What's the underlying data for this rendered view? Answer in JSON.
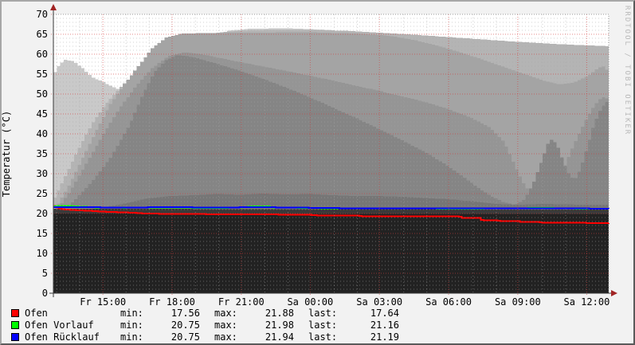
{
  "chart": {
    "ylabel": "Temperatur (°C)",
    "watermark": "RRDTOOL / TOBI OETIKER"
  },
  "chart_data": {
    "type": "area",
    "title": "",
    "xlabel": "",
    "ylabel": "Temperatur (°C)",
    "ylim": [
      0,
      70
    ],
    "y_major_step": 5,
    "y_minor_step": 1,
    "x_span_hours": 24,
    "x_ticks": [
      {
        "hour": 2.14,
        "label": "Fr 15:00"
      },
      {
        "hour": 5.13,
        "label": "Fr 18:00"
      },
      {
        "hour": 8.12,
        "label": "Fr 21:00"
      },
      {
        "hour": 11.1,
        "label": "Sa 00:00"
      },
      {
        "hour": 14.09,
        "label": "Sa 03:00"
      },
      {
        "hour": 17.08,
        "label": "Sa 06:00"
      },
      {
        "hour": 20.07,
        "label": "Sa 09:00"
      },
      {
        "hour": 23.05,
        "label": "Sa 12:00"
      }
    ],
    "grid": {
      "major_color": "rgba(210,60,60,0.6)",
      "minor_color": "rgba(165,165,165,0.5)",
      "axis_color": "#3a3a3a",
      "arrow_color": "#a12424",
      "frame_color": "#999999"
    },
    "gray_areas": [
      {
        "name": "background-band-1",
        "color": "#c9c9c9",
        "points": [
          [
            0,
            55.5
          ],
          [
            0.2,
            57.5
          ],
          [
            0.45,
            58.6
          ],
          [
            0.8,
            58.2
          ],
          [
            1.2,
            56.5
          ],
          [
            1.6,
            54.2
          ],
          [
            2.1,
            53
          ],
          [
            2.6,
            51.5
          ],
          [
            3.2,
            50.5
          ],
          [
            5,
            55
          ],
          [
            6.5,
            62
          ],
          [
            7.5,
            65.9
          ],
          [
            8.5,
            66.4
          ],
          [
            10,
            66.5
          ],
          [
            11.5,
            66.2
          ],
          [
            12.5,
            65.8
          ],
          [
            13,
            64
          ],
          [
            14,
            60
          ],
          [
            24,
            58
          ]
        ]
      },
      {
        "name": "background-band-2",
        "color": "#b4b4b4",
        "points": [
          [
            0,
            24
          ],
          [
            0.5,
            30
          ],
          [
            1,
            36
          ],
          [
            1.6,
            42.5
          ],
          [
            2.2,
            47.5
          ],
          [
            2.8,
            51.5
          ],
          [
            3.4,
            55
          ],
          [
            4,
            58
          ],
          [
            4.6,
            60.8
          ],
          [
            5.2,
            62.8
          ],
          [
            6,
            64.4
          ],
          [
            7,
            65.4
          ],
          [
            8,
            65.9
          ],
          [
            9.5,
            66.1
          ],
          [
            11,
            66.1
          ],
          [
            12.5,
            65.9
          ],
          [
            14,
            65.4
          ],
          [
            15.5,
            64.9
          ],
          [
            17,
            64.3
          ],
          [
            18.5,
            63.7
          ],
          [
            20,
            63.1
          ],
          [
            21.5,
            62.6
          ],
          [
            23,
            62.2
          ],
          [
            24,
            62
          ]
        ]
      },
      {
        "name": "background-band-3",
        "color": "#a4a4a4",
        "points": [
          [
            0,
            21
          ],
          [
            0.6,
            27
          ],
          [
            1.2,
            34
          ],
          [
            1.8,
            41
          ],
          [
            2.4,
            47.5
          ],
          [
            3,
            52.5
          ],
          [
            3.6,
            57
          ],
          [
            4.2,
            61.5
          ],
          [
            4.8,
            64.2
          ],
          [
            5.5,
            65.2
          ],
          [
            8,
            65.4
          ],
          [
            11,
            65.5
          ],
          [
            13,
            65.2
          ],
          [
            14.5,
            64.6
          ],
          [
            15.5,
            63.6
          ],
          [
            16.5,
            62.2
          ],
          [
            17.5,
            60.5
          ],
          [
            18.5,
            58.6
          ],
          [
            19.5,
            56.6
          ],
          [
            20.5,
            54.6
          ],
          [
            21.2,
            53.2
          ],
          [
            21.8,
            52.4
          ],
          [
            22.4,
            52.8
          ],
          [
            23,
            54.4
          ],
          [
            23.5,
            56.6
          ],
          [
            23.8,
            57
          ],
          [
            24,
            53.5
          ]
        ]
      },
      {
        "name": "background-band-4",
        "color": "#959595",
        "points": [
          [
            0,
            20
          ],
          [
            0.7,
            26
          ],
          [
            1.4,
            33
          ],
          [
            2.1,
            40
          ],
          [
            2.8,
            46.5
          ],
          [
            3.5,
            52
          ],
          [
            4.2,
            56.5
          ],
          [
            4.9,
            59.5
          ],
          [
            5.6,
            60.5
          ],
          [
            6.5,
            59.8
          ],
          [
            8,
            58
          ],
          [
            10,
            55.8
          ],
          [
            12,
            53.4
          ],
          [
            14,
            50.8
          ],
          [
            16,
            48
          ],
          [
            17,
            46.2
          ],
          [
            18,
            44
          ],
          [
            18.8,
            41.6
          ],
          [
            19.4,
            38
          ],
          [
            19.8,
            33
          ],
          [
            20.2,
            28
          ],
          [
            20.6,
            24.6
          ],
          [
            21,
            23.4
          ],
          [
            21.4,
            25
          ],
          [
            21.9,
            30
          ],
          [
            22.4,
            37
          ],
          [
            22.9,
            43
          ],
          [
            23.3,
            47
          ],
          [
            23.6,
            49
          ],
          [
            23.8,
            49.5
          ],
          [
            24,
            47
          ]
        ]
      },
      {
        "name": "background-band-5",
        "color": "#858585",
        "points": [
          [
            0,
            19.5
          ],
          [
            0.8,
            23
          ],
          [
            1.6,
            28
          ],
          [
            2.4,
            34
          ],
          [
            3.2,
            42
          ],
          [
            3.8,
            50
          ],
          [
            4.3,
            55.5
          ],
          [
            4.8,
            58.5
          ],
          [
            5.3,
            59.8
          ],
          [
            6,
            59.2
          ],
          [
            7,
            57.6
          ],
          [
            8,
            55.8
          ],
          [
            9,
            53.8
          ],
          [
            10,
            51.6
          ],
          [
            11,
            49.2
          ],
          [
            12,
            46.6
          ],
          [
            13,
            44
          ],
          [
            14,
            41.2
          ],
          [
            15,
            38.4
          ],
          [
            16,
            35.4
          ],
          [
            16.8,
            32.6
          ],
          [
            17.6,
            29.4
          ],
          [
            18.3,
            26.4
          ],
          [
            18.9,
            24.2
          ],
          [
            19.4,
            22.8
          ],
          [
            19.9,
            22.2
          ],
          [
            20.3,
            23.6
          ],
          [
            20.7,
            28
          ],
          [
            21.05,
            33.5
          ],
          [
            21.3,
            37.5
          ],
          [
            21.5,
            38.8
          ],
          [
            21.75,
            36.5
          ],
          [
            22,
            32.5
          ],
          [
            22.25,
            29.5
          ],
          [
            22.45,
            28.4
          ],
          [
            22.7,
            31
          ],
          [
            23,
            36.5
          ],
          [
            23.3,
            42.5
          ],
          [
            23.6,
            46.5
          ],
          [
            23.85,
            48
          ],
          [
            24,
            45.5
          ]
        ]
      },
      {
        "name": "background-band-6",
        "color": "#767676",
        "points": [
          [
            0,
            20.5
          ],
          [
            2,
            21.5
          ],
          [
            3,
            22.5
          ],
          [
            4,
            23.8
          ],
          [
            5,
            24.4
          ],
          [
            6,
            24.6
          ],
          [
            7,
            24.9
          ],
          [
            8,
            24.7
          ],
          [
            9,
            25
          ],
          [
            10,
            24.8
          ],
          [
            11,
            24.9
          ],
          [
            12,
            24.6
          ],
          [
            13,
            24.4
          ],
          [
            14,
            24.4
          ],
          [
            15,
            24.2
          ],
          [
            16,
            23.9
          ],
          [
            17,
            23.6
          ],
          [
            17.8,
            23.2
          ],
          [
            18.4,
            22.8
          ],
          [
            19,
            22.4
          ],
          [
            20,
            22.2
          ],
          [
            21,
            22.4
          ],
          [
            22,
            22.3
          ],
          [
            23,
            22.2
          ],
          [
            24,
            22.2
          ]
        ]
      },
      {
        "name": "background-band-7",
        "color": "#3a3a3a",
        "points": [
          [
            0,
            21.2
          ],
          [
            6,
            21.15
          ],
          [
            12,
            21.1
          ],
          [
            18,
            21.05
          ],
          [
            24,
            21.05
          ]
        ]
      },
      {
        "name": "background-band-8",
        "color": "#222222",
        "points": [
          [
            0,
            20.0
          ],
          [
            8,
            19.95
          ],
          [
            16,
            19.92
          ],
          [
            24,
            19.9
          ]
        ]
      }
    ],
    "series": [
      {
        "name": "Ofen",
        "color": "#ff0000",
        "points": [
          [
            0,
            21.88
          ],
          [
            0.2,
            21.3
          ],
          [
            0.5,
            21.0
          ],
          [
            1,
            20.8
          ],
          [
            1.5,
            20.7
          ],
          [
            2,
            20.5
          ],
          [
            2.5,
            20.4
          ],
          [
            3,
            20.3
          ],
          [
            3.5,
            20.15
          ],
          [
            4,
            20.0
          ],
          [
            4.5,
            19.95
          ],
          [
            5.5,
            19.9
          ],
          [
            6.5,
            19.85
          ],
          [
            7.5,
            19.8
          ],
          [
            9.6,
            19.8
          ],
          [
            9.7,
            19.7
          ],
          [
            11,
            19.7
          ],
          [
            11.5,
            19.5
          ],
          [
            13.1,
            19.45
          ],
          [
            13.2,
            19.35
          ],
          [
            15,
            19.35
          ],
          [
            15.5,
            19.3
          ],
          [
            17.5,
            19.3
          ],
          [
            17.6,
            18.9
          ],
          [
            18.4,
            18.9
          ],
          [
            18.5,
            18.3
          ],
          [
            19.1,
            18.3
          ],
          [
            19.2,
            18.15
          ],
          [
            20,
            18.1
          ],
          [
            20.2,
            17.9
          ],
          [
            21,
            17.85
          ],
          [
            21.1,
            17.75
          ],
          [
            22.5,
            17.7
          ],
          [
            23,
            17.65
          ],
          [
            23.5,
            17.56
          ],
          [
            24,
            17.64
          ]
        ]
      },
      {
        "name": "Ofen Vorlauf",
        "color": "#00ff00",
        "points": [
          [
            0,
            21.85
          ],
          [
            0.5,
            21.95
          ],
          [
            1,
            21.75
          ],
          [
            1.5,
            21.6
          ],
          [
            2,
            21.5
          ],
          [
            3,
            21.45
          ],
          [
            4,
            21.5
          ],
          [
            4.5,
            21.55
          ],
          [
            5,
            21.5
          ],
          [
            6,
            21.45
          ],
          [
            7,
            21.4
          ],
          [
            8,
            21.5
          ],
          [
            8.6,
            21.8
          ],
          [
            9.2,
            21.8
          ],
          [
            9.5,
            21.5
          ],
          [
            10.5,
            21.45
          ],
          [
            11.5,
            21.35
          ],
          [
            12.5,
            21.3
          ],
          [
            13.5,
            21.25
          ],
          [
            14.3,
            21.3
          ],
          [
            15,
            21.35
          ],
          [
            15.5,
            21.3
          ],
          [
            16.5,
            21.25
          ],
          [
            17.5,
            21.2
          ],
          [
            18.5,
            21.25
          ],
          [
            19.5,
            21.3
          ],
          [
            20.5,
            21.35
          ],
          [
            21,
            21.4
          ],
          [
            21.5,
            21.35
          ],
          [
            22,
            21.3
          ],
          [
            22.5,
            21.25
          ],
          [
            23,
            21.2
          ],
          [
            23.5,
            21.18
          ],
          [
            24,
            21.16
          ]
        ]
      },
      {
        "name": "Ofen Rücklauf",
        "color": "#0000ff",
        "points": [
          [
            0,
            21.6
          ],
          [
            0.5,
            21.65
          ],
          [
            1,
            21.6
          ],
          [
            2,
            21.55
          ],
          [
            3,
            21.5
          ],
          [
            4,
            21.55
          ],
          [
            5,
            21.6
          ],
          [
            6,
            21.55
          ],
          [
            7,
            21.5
          ],
          [
            8,
            21.55
          ],
          [
            9,
            21.6
          ],
          [
            10,
            21.5
          ],
          [
            11,
            21.45
          ],
          [
            12,
            21.4
          ],
          [
            12.6,
            21.3
          ],
          [
            13.5,
            21.25
          ],
          [
            14.5,
            21.3
          ],
          [
            15.5,
            21.25
          ],
          [
            16.5,
            21.3
          ],
          [
            17.5,
            21.25
          ],
          [
            18.5,
            21.3
          ],
          [
            19.5,
            21.25
          ],
          [
            20.5,
            21.3
          ],
          [
            21.5,
            21.25
          ],
          [
            22.5,
            21.3
          ],
          [
            23.5,
            21.22
          ],
          [
            24,
            21.19
          ]
        ]
      }
    ],
    "legend": {
      "min_label": "min:",
      "max_label": "max:",
      "last_label": "last:",
      "rows": [
        {
          "color": "#ff0000",
          "label": "Ofen",
          "min": "17.56",
          "max": "21.88",
          "last": "17.64"
        },
        {
          "color": "#00ff00",
          "label": "Ofen Vorlauf",
          "min": "20.75",
          "max": "21.98",
          "last": "21.16"
        },
        {
          "color": "#0000ff",
          "label": "Ofen Rücklauf",
          "min": "20.75",
          "max": "21.94",
          "last": "21.19"
        }
      ]
    }
  }
}
